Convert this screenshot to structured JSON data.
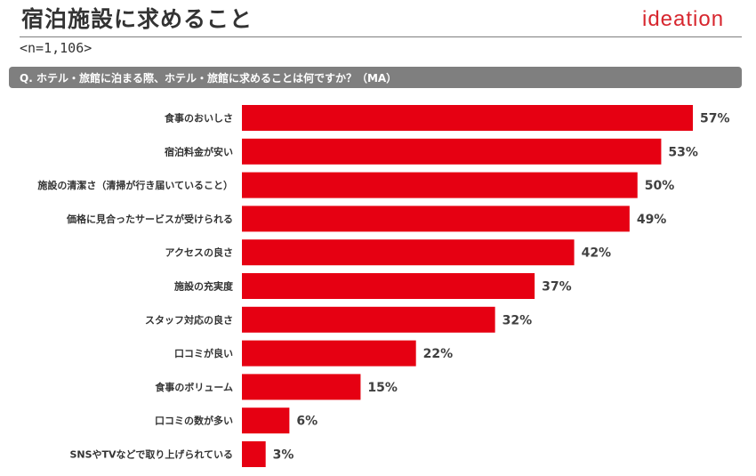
{
  "header": {
    "title": "宿泊施設に求めること",
    "logo_text": "ideation",
    "sample_size": "<n=1,106>"
  },
  "question": {
    "text": "Q. ホテル・旅館に泊まる際、ホテル・旅館に求めることは何ですか？（MA）"
  },
  "colors": {
    "bar": "#e60012",
    "question_bg": "#7f7f7f",
    "logo": "#d7262e"
  },
  "chart_data": {
    "type": "bar",
    "orientation": "horizontal",
    "categories": [
      "食事のおいしさ",
      "宿泊料金が安い",
      "施設の清潔さ（清掃が行き届いていること）",
      "価格に見合ったサービスが受けられる",
      "アクセスの良さ",
      "施設の充実度",
      "スタッフ対応の良さ",
      "口コミが良い",
      "食事のボリューム",
      "口コミの数が多い",
      "SNSやTVなどで取り上げられている"
    ],
    "values": [
      57,
      53,
      50,
      49,
      42,
      37,
      32,
      22,
      15,
      6,
      3
    ],
    "value_labels": [
      "57%",
      "53%",
      "50%",
      "49%",
      "42%",
      "37%",
      "32%",
      "22%",
      "15%",
      "6%",
      "3%"
    ],
    "unit": "%",
    "xlim": [
      0,
      57
    ],
    "grid": false,
    "legend": "none"
  }
}
